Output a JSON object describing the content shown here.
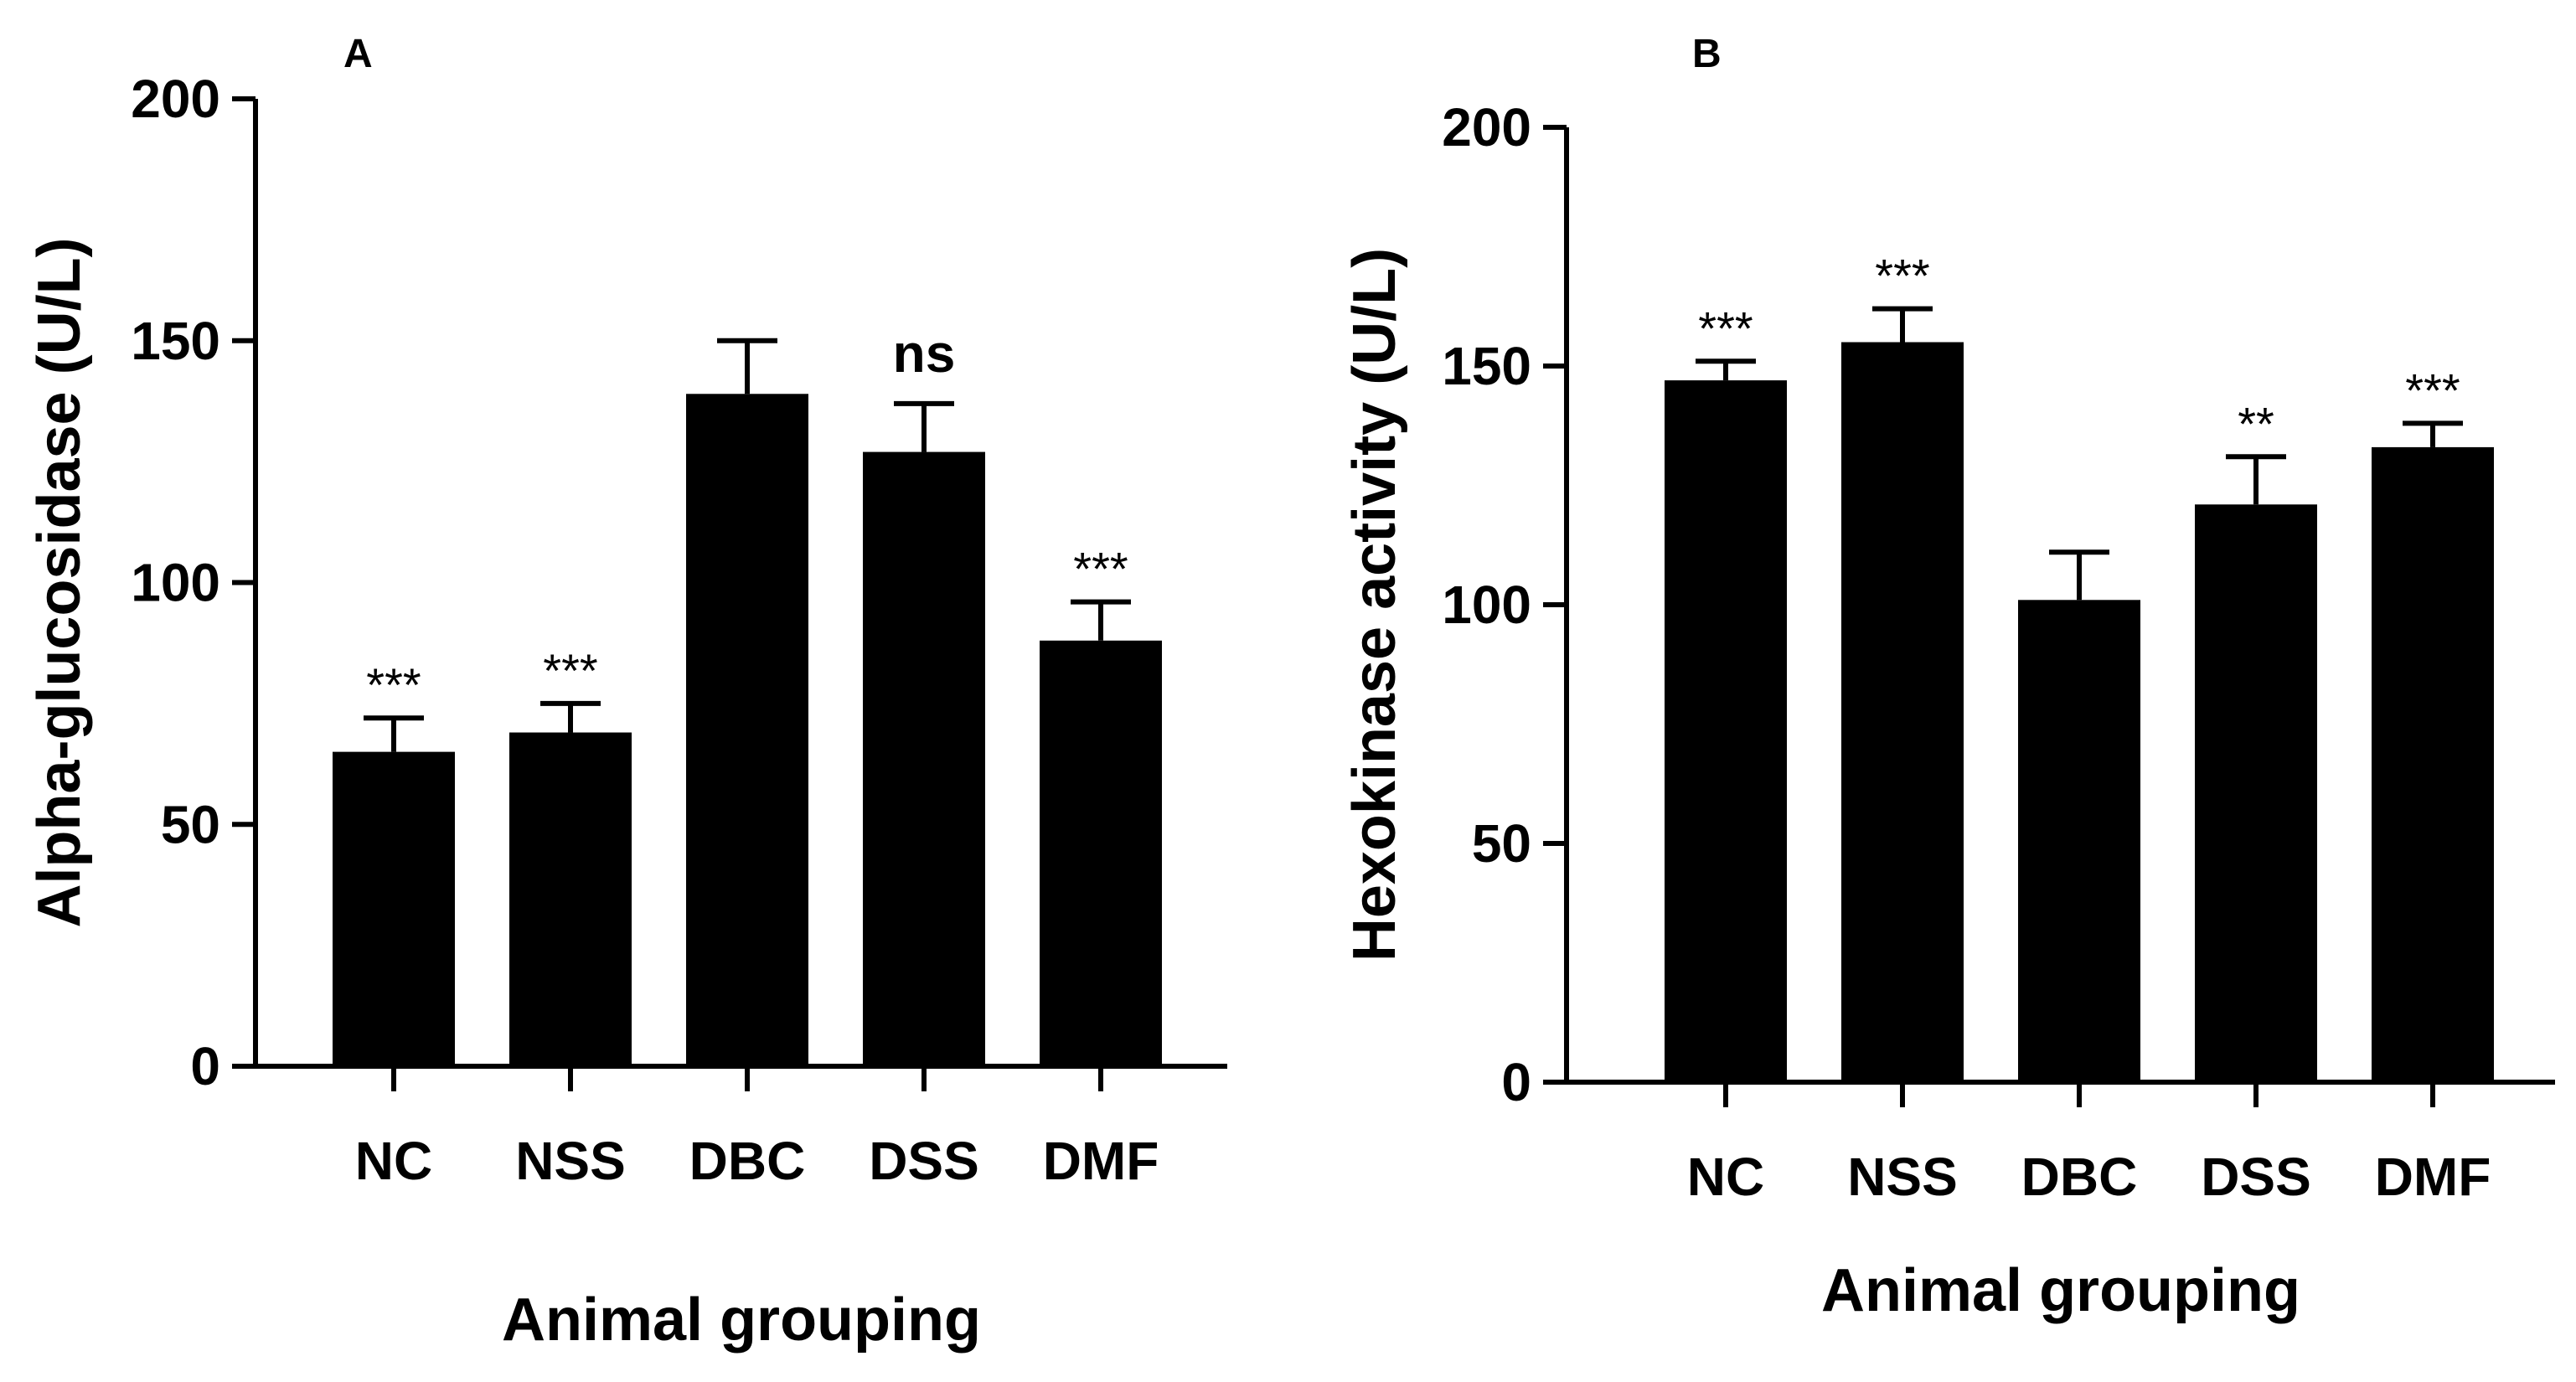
{
  "chart_data": [
    {
      "panel_label": "A",
      "type": "bar",
      "categories": [
        "NC",
        "NSS",
        "DBC",
        "DSS",
        "DMF"
      ],
      "values": [
        65,
        69,
        139,
        127,
        88
      ],
      "errors": [
        7,
        6,
        11,
        10,
        8
      ],
      "annotations": [
        "***",
        "***",
        "",
        "ns",
        "***"
      ],
      "xlabel": "Animal grouping",
      "ylabel": "Alpha-glucosidase (U/L)",
      "ylim": [
        0,
        200
      ],
      "yticks": [
        0,
        50,
        100,
        150,
        200
      ],
      "bar_color": "#000000",
      "grid": false
    },
    {
      "panel_label": "B",
      "type": "bar",
      "categories": [
        "NC",
        "NSS",
        "DBC",
        "DSS",
        "DMF"
      ],
      "values": [
        147,
        155,
        101,
        121,
        133
      ],
      "errors": [
        4,
        7,
        10,
        10,
        5
      ],
      "annotations": [
        "***",
        "***",
        "",
        "**",
        "***"
      ],
      "xlabel": "Animal grouping",
      "ylabel": "Hexokinase activity (U/L)",
      "ylim": [
        0,
        200
      ],
      "yticks": [
        0,
        50,
        100,
        150,
        200
      ],
      "bar_color": "#000000",
      "grid": false
    }
  ]
}
